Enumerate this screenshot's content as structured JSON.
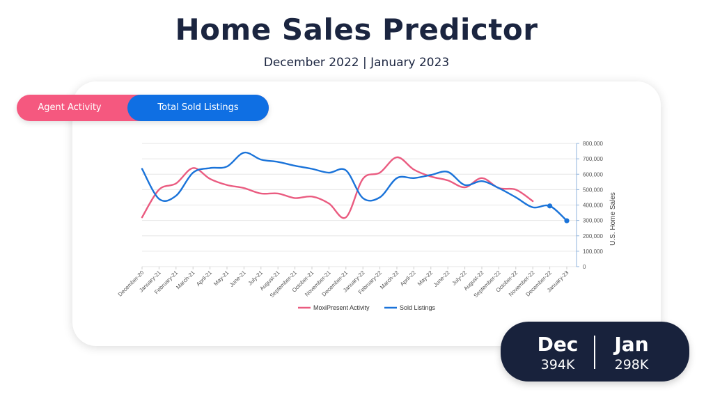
{
  "header": {
    "title": "Home Sales Predictor",
    "subtitle": "December 2022 | January 2023"
  },
  "toggle": {
    "agent_label": "Agent Activity",
    "sold_label": "Total Sold Listings"
  },
  "colors": {
    "activity": "#ea5b80",
    "sold": "#1a73d9",
    "title": "#1b2540",
    "summary_bg": "#18223c"
  },
  "summary": {
    "dec": {
      "month": "Dec",
      "value": "394K"
    },
    "jan": {
      "month": "Jan",
      "value": "298K"
    }
  },
  "chart_data": {
    "type": "line",
    "categories": [
      "December-20",
      "January-21",
      "February-21",
      "March-21",
      "April-21",
      "May-21",
      "June-21",
      "July-21",
      "August-21",
      "September-21",
      "October-21",
      "November-21",
      "December-21",
      "January-22",
      "February-22",
      "March-22",
      "April-22",
      "May-22",
      "June-22",
      "July-22",
      "August-22",
      "September-22",
      "October-22",
      "November-22",
      "December-22",
      "January-23"
    ],
    "series": [
      {
        "name": "MoxiPresent Activity",
        "color": "#ea5b80",
        "values": [
          320000,
          500000,
          540000,
          640000,
          570000,
          530000,
          510000,
          475000,
          475000,
          445000,
          455000,
          410000,
          320000,
          570000,
          610000,
          710000,
          630000,
          585000,
          560000,
          515000,
          575000,
          510000,
          500000,
          425000,
          null,
          null
        ]
      },
      {
        "name": "Sold Listings",
        "color": "#1a73d9",
        "values": [
          635000,
          440000,
          460000,
          610000,
          640000,
          650000,
          740000,
          695000,
          680000,
          655000,
          635000,
          610000,
          625000,
          445000,
          450000,
          575000,
          575000,
          595000,
          615000,
          530000,
          555000,
          510000,
          450000,
          385000,
          394000,
          298000
        ]
      }
    ],
    "ylabel": "U.S. Home Sales",
    "ylim": [
      0,
      800000
    ],
    "yticks": [
      0,
      100000,
      200000,
      300000,
      400000,
      500000,
      600000,
      700000,
      800000
    ],
    "ytick_labels": [
      "0",
      "100,000",
      "200,000",
      "300,000",
      "400,000",
      "500,000",
      "600,000",
      "700,000",
      "800,000"
    ],
    "y_axis_side": "right",
    "grid": true,
    "legend": "bottom-center",
    "markers_on": [
      "December-22",
      "January-23"
    ]
  }
}
